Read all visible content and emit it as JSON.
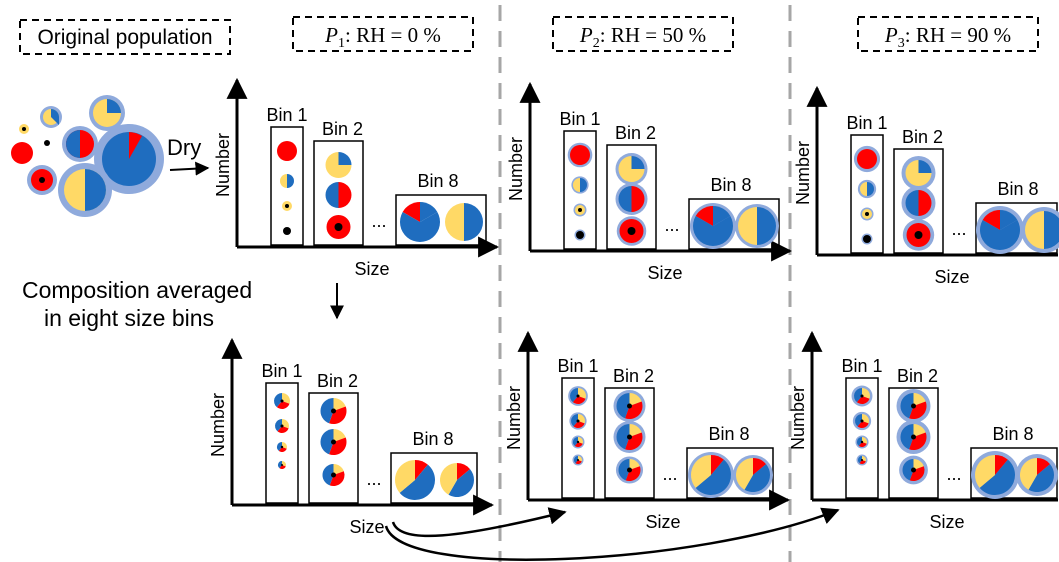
{
  "labels": {
    "original_population": "Original population",
    "dry": "Dry",
    "composition_line1": "Composition averaged",
    "composition_line2": "in eight size bins",
    "axis_y": "Number",
    "axis_x": "Size",
    "bin1": "Bin 1",
    "bin2": "Bin 2",
    "bin8": "Bin 8",
    "ellipsis": "..."
  },
  "scenarios": [
    {
      "symbol": "P",
      "subscript": "1",
      "text": ": RH = 0 %"
    },
    {
      "symbol": "P",
      "subscript": "2",
      "text": ": RH = 50 %"
    },
    {
      "symbol": "P",
      "subscript": "3",
      "text": ": RH = 90 %"
    }
  ],
  "colors": {
    "red": "#ff0000",
    "blue": "#1f6dbf",
    "yellow": "#ffd966",
    "coating": "#8faadc",
    "black": "#000000",
    "dash_gray": "#a6a6a6"
  }
}
